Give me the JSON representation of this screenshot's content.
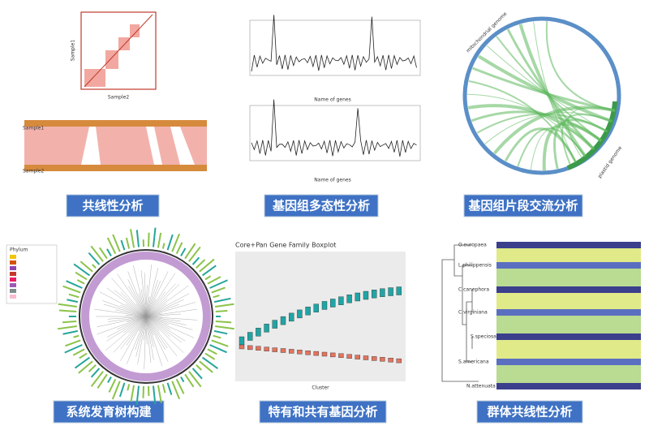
{
  "panels": [
    {
      "caption": "共线性分析",
      "texts": [
        "Sample1",
        "Sample2",
        "Sample1",
        "Sample2"
      ]
    },
    {
      "caption": "基因组多态性分析",
      "texts": [
        "Name of genes",
        "Name of genes"
      ]
    },
    {
      "caption": "基因组片段交流分析",
      "texts": [
        "mitochondrial genome",
        "plastid genome"
      ]
    },
    {
      "caption": "系统发育树构建",
      "texts": [
        "Phylum"
      ]
    },
    {
      "caption": "特有和共有基因分析",
      "texts": [
        "Core+Pan Gene Family Boxplot",
        "Cluster"
      ]
    },
    {
      "caption": "群体共线性分析",
      "texts": [
        "O.europaea",
        "L.philippensis",
        "C.canephora",
        "C.virginiana",
        "S.speciosa",
        "S.americana",
        "N.attenuata"
      ]
    }
  ]
}
